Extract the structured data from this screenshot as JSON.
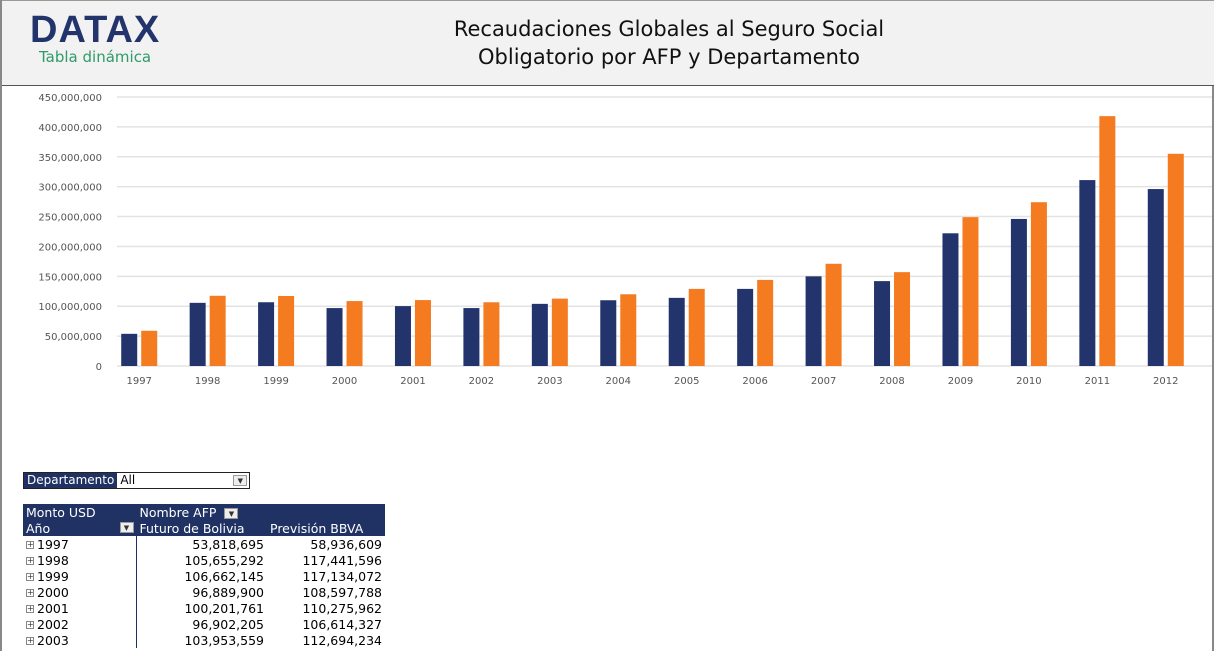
{
  "header": {
    "logo": "DATAX",
    "subtitle": "Tabla dinámica",
    "title_line1": "Recaudaciones Globales al Seguro Social",
    "title_line2": "Obligatorio por AFP y Departamento"
  },
  "colors": {
    "futuro": "#22346b",
    "prevision": "#f47b20",
    "header_bg": "#203264"
  },
  "chart_data": {
    "type": "bar",
    "categories": [
      "1997",
      "1998",
      "1999",
      "2000",
      "2001",
      "2002",
      "2003",
      "2004",
      "2005",
      "2006",
      "2007",
      "2008",
      "2009",
      "2010",
      "2011",
      "2012"
    ],
    "series": [
      {
        "name": "Futuro de Bolivia",
        "values": [
          53818695,
          105655292,
          106662145,
          96889900,
          100201761,
          96902205,
          103953559,
          110000000,
          114000000,
          129000000,
          150000000,
          142000000,
          222000000,
          246000000,
          311000000,
          296000000
        ]
      },
      {
        "name": "Previsión BBVA",
        "values": [
          58936609,
          117441596,
          117134072,
          108597788,
          110275962,
          106614327,
          112694234,
          120000000,
          129000000,
          144000000,
          171000000,
          157000000,
          249000000,
          274000000,
          418000000,
          355000000
        ]
      }
    ],
    "ylim": [
      0,
      450000000
    ],
    "yticks": [
      "0",
      "50,000,000",
      "100,000,000",
      "150,000,000",
      "200,000,000",
      "250,000,000",
      "300,000,000",
      "350,000,000",
      "400,000,000",
      "450,000,000"
    ],
    "grid": true,
    "legend": "none"
  },
  "filter": {
    "label": "Departamento",
    "value": "All"
  },
  "pivot": {
    "measure": "Monto USD",
    "column_field": "Nombre AFP",
    "row_field": "Año",
    "columns": [
      "Futuro de Bolivia",
      "Previsión BBVA"
    ],
    "rows": [
      {
        "year": "1997",
        "v": [
          "53,818,695",
          "58,936,609"
        ]
      },
      {
        "year": "1998",
        "v": [
          "105,655,292",
          "117,441,596"
        ]
      },
      {
        "year": "1999",
        "v": [
          "106,662,145",
          "117,134,072"
        ]
      },
      {
        "year": "2000",
        "v": [
          "96,889,900",
          "108,597,788"
        ]
      },
      {
        "year": "2001",
        "v": [
          "100,201,761",
          "110,275,962"
        ]
      },
      {
        "year": "2002",
        "v": [
          "96,902,205",
          "106,614,327"
        ]
      },
      {
        "year": "2003",
        "v": [
          "103,953,559",
          "112,694,234"
        ]
      }
    ]
  }
}
